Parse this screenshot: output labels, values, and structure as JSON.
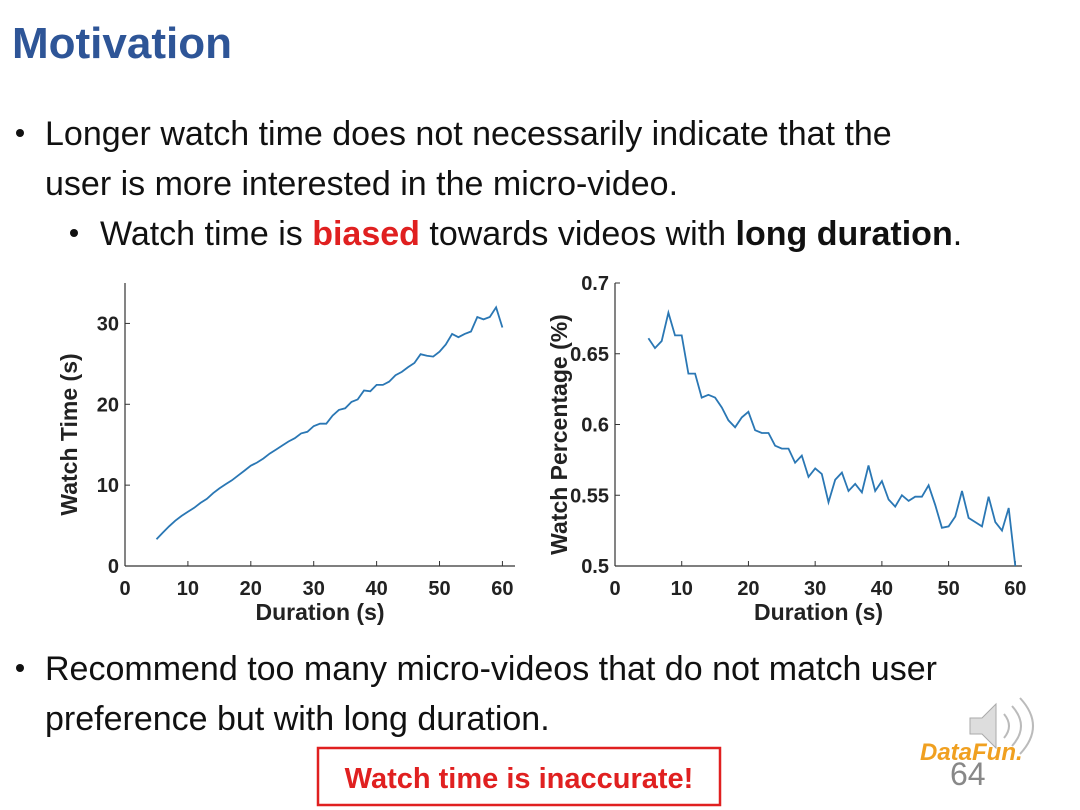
{
  "title": "Motivation",
  "bullets": [
    {
      "lines": [
        "Longer watch time does not necessarily indicate that the",
        "user is more interested in the micro-video."
      ]
    },
    {
      "segments": [
        "Watch time is ",
        "biased",
        " towards videos with ",
        "long duration",
        "."
      ]
    },
    {
      "lines": [
        "Recommend too many micro-videos that do not match user",
        "preference but with long duration."
      ]
    }
  ],
  "callout": "Watch time is inaccurate!",
  "logo": "DataFun.",
  "page_number": "64",
  "chart_data": [
    {
      "type": "line",
      "xlabel": "Duration (s)",
      "ylabel": "Watch Time (s)",
      "color": "#2a77b4",
      "x": [
        5,
        6,
        7,
        8,
        9,
        10,
        11,
        12,
        13,
        14,
        15,
        16,
        17,
        18,
        19,
        20,
        21,
        22,
        23,
        24,
        25,
        26,
        27,
        28,
        29,
        30,
        31,
        32,
        33,
        34,
        35,
        36,
        37,
        38,
        39,
        40,
        41,
        42,
        43,
        44,
        45,
        46,
        47,
        48,
        49,
        50,
        51,
        52,
        53,
        54,
        55,
        56,
        57,
        58,
        59,
        60
      ],
      "values": [
        3.3,
        4.1,
        4.9,
        5.6,
        6.2,
        6.7,
        7.2,
        7.8,
        8.3,
        9.0,
        9.6,
        10.1,
        10.6,
        11.2,
        11.8,
        12.4,
        12.8,
        13.3,
        13.9,
        14.4,
        14.9,
        15.4,
        15.8,
        16.4,
        16.6,
        17.3,
        17.6,
        17.6,
        18.6,
        19.3,
        19.5,
        20.3,
        20.6,
        21.7,
        21.6,
        22.4,
        22.4,
        22.8,
        23.6,
        24.0,
        24.6,
        25.1,
        26.2,
        26.0,
        25.9,
        26.5,
        27.4,
        28.7,
        28.3,
        28.7,
        29.0,
        30.8,
        30.5,
        30.8,
        32.0,
        29.5
      ],
      "xlim": [
        0,
        62
      ],
      "xticks": [
        0,
        10,
        20,
        30,
        40,
        50,
        60
      ],
      "ylim": [
        0,
        35
      ],
      "yticks": [
        0,
        10,
        20,
        30
      ]
    },
    {
      "type": "line",
      "xlabel": "Duration (s)",
      "ylabel": "Watch Percentage (%)",
      "color": "#2a77b4",
      "x": [
        5,
        6,
        7,
        8,
        9,
        10,
        11,
        12,
        13,
        14,
        15,
        16,
        17,
        18,
        19,
        20,
        21,
        22,
        23,
        24,
        25,
        26,
        27,
        28,
        29,
        30,
        31,
        32,
        33,
        34,
        35,
        36,
        37,
        38,
        39,
        40,
        41,
        42,
        43,
        44,
        45,
        46,
        47,
        48,
        49,
        50,
        51,
        52,
        53,
        54,
        55,
        56,
        57,
        58,
        59,
        60
      ],
      "values": [
        0.661,
        0.654,
        0.659,
        0.679,
        0.663,
        0.663,
        0.636,
        0.636,
        0.619,
        0.621,
        0.619,
        0.612,
        0.603,
        0.598,
        0.605,
        0.609,
        0.596,
        0.594,
        0.594,
        0.585,
        0.583,
        0.583,
        0.573,
        0.578,
        0.563,
        0.569,
        0.565,
        0.545,
        0.561,
        0.566,
        0.553,
        0.558,
        0.552,
        0.571,
        0.553,
        0.56,
        0.547,
        0.542,
        0.55,
        0.546,
        0.549,
        0.549,
        0.557,
        0.543,
        0.527,
        0.528,
        0.535,
        0.553,
        0.534,
        0.531,
        0.528,
        0.549,
        0.531,
        0.525,
        0.541,
        0.5
      ],
      "xlim": [
        0,
        61
      ],
      "xticks": [
        0,
        10,
        20,
        30,
        40,
        50,
        60
      ],
      "ylim": [
        0.5,
        0.7
      ],
      "yticks": [
        0.5,
        0.55,
        0.6,
        0.65,
        0.7
      ]
    }
  ]
}
